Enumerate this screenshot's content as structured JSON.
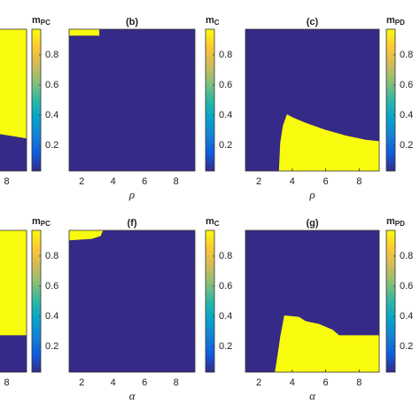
{
  "colormap": [
    "#352a87",
    "#0f5cdd",
    "#1481d6",
    "#06a4ca",
    "#2eb7a4",
    "#87bf77",
    "#d1bb59",
    "#fec832",
    "#f9fb0e"
  ],
  "chart_data": [
    {
      "type": "heatmap",
      "xlim": [
        1.2,
        9.2
      ],
      "xticks": [
        8
      ],
      "colorbar": {
        "label": "m",
        "subscript": "PC",
        "lim": [
          0.03,
          0.97
        ],
        "ticks": [
          0.2,
          0.4,
          0.6,
          0.8
        ]
      }
    },
    {
      "type": "heatmap",
      "title": "(b)",
      "xlabel": "ρ",
      "xlim": [
        1.2,
        9.2
      ],
      "xticks": [
        2,
        4,
        6,
        8
      ],
      "colorbar": {
        "label": "m",
        "subscript": "C",
        "lim": [
          0.03,
          0.97
        ],
        "ticks": [
          0.2,
          0.4,
          0.6,
          0.8
        ]
      }
    },
    {
      "type": "heatmap",
      "title": "(c)",
      "xlabel": "ρ",
      "xlim": [
        1.2,
        9.2
      ],
      "xticks": [
        2,
        4,
        6,
        8
      ],
      "colorbar": {
        "label": "m",
        "subscript": "PD",
        "lim": [
          0.03,
          0.97
        ],
        "ticks": [
          0.2,
          0.4,
          0.6,
          0.8
        ]
      }
    },
    {
      "type": "heatmap",
      "xlim": [
        1.2,
        9.2
      ],
      "xticks": [
        8
      ],
      "colorbar": {
        "label": "m",
        "subscript": "PC",
        "lim": [
          0.03,
          0.97
        ],
        "ticks": [
          0.2,
          0.4,
          0.6,
          0.8
        ]
      }
    },
    {
      "type": "heatmap",
      "title": "(f)",
      "xlabel": "α",
      "xlim": [
        1.2,
        9.2
      ],
      "xticks": [
        2,
        4,
        6,
        8
      ],
      "colorbar": {
        "label": "m",
        "subscript": "C",
        "lim": [
          0.03,
          0.97
        ],
        "ticks": [
          0.2,
          0.4,
          0.6,
          0.8
        ]
      }
    },
    {
      "type": "heatmap",
      "title": "(g)",
      "xlabel": "α",
      "xlim": [
        1.2,
        9.2
      ],
      "xticks": [
        2,
        4,
        6,
        8
      ],
      "colorbar": {
        "label": "m",
        "subscript": "PD",
        "lim": [
          0.03,
          0.97
        ],
        "ticks": [
          0.2,
          0.4,
          0.6,
          0.8
        ]
      }
    }
  ]
}
